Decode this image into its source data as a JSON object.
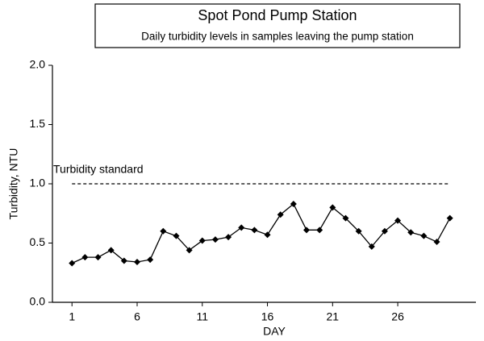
{
  "chart_data": {
    "type": "line",
    "title": "Spot Pond Pump Station",
    "subtitle": "Daily turbidity levels in samples leaving the pump station",
    "x_label": "DAY",
    "y_label": "Turbidity, NTU",
    "x": [
      1,
      2,
      3,
      4,
      5,
      6,
      7,
      8,
      9,
      10,
      11,
      12,
      13,
      14,
      15,
      16,
      17,
      18,
      19,
      20,
      21,
      22,
      23,
      24,
      25,
      26,
      27,
      28,
      29,
      30
    ],
    "values": [
      0.33,
      0.38,
      0.38,
      0.44,
      0.35,
      0.34,
      0.36,
      0.6,
      0.56,
      0.44,
      0.52,
      0.53,
      0.55,
      0.63,
      0.61,
      0.57,
      0.74,
      0.83,
      0.61,
      0.61,
      0.8,
      0.71,
      0.6,
      0.47,
      0.6,
      0.69,
      0.59,
      0.56,
      0.51,
      0.71
    ],
    "color": "#000000",
    "xlim": [
      -0.5,
      32
    ],
    "xticks": [
      1,
      6,
      11,
      16,
      21,
      26
    ],
    "ylim": [
      0,
      2
    ],
    "yticks": [
      {
        "value": 0,
        "label": "0.0"
      },
      {
        "value": 0.5,
        "label": "0.5"
      },
      {
        "value": 1,
        "label": "1.0"
      },
      {
        "value": 1.5,
        "label": "1.5"
      },
      {
        "value": 2,
        "label": "2.0"
      }
    ],
    "reference_line": {
      "value": 1,
      "label": "Turbidity standard"
    }
  }
}
